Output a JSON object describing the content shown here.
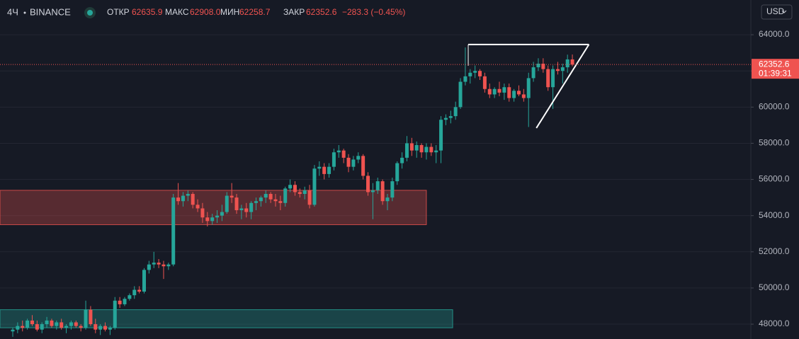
{
  "header": {
    "interval": "4Ч",
    "exchange": "BINANCE",
    "open_label": "ОТКР",
    "open": "62635.9",
    "high_label": "МАКС",
    "high": "62908.0",
    "low_label": "МИН",
    "low": "62258.7",
    "close_label": "ЗАКР",
    "close": "62352.6",
    "change": "−283.3 (−0.45%)",
    "currency": "USD"
  },
  "chart_data": {
    "type": "candlestick",
    "ylim": [
      47180,
      65920
    ],
    "yticks": [
      {
        "value": 48000,
        "label": "48000.0"
      },
      {
        "value": 50000,
        "label": "50000.0"
      },
      {
        "value": 52000,
        "label": "52000.0"
      },
      {
        "value": 54000,
        "label": "54000.0"
      },
      {
        "value": 56000,
        "label": "56000.0"
      },
      {
        "value": 58000,
        "label": "58000.0"
      },
      {
        "value": 60000,
        "label": "60000.0"
      },
      {
        "value": 62000,
        "label": "62000.0"
      },
      {
        "value": 64000,
        "label": "64000.0"
      }
    ],
    "grid": true,
    "up_color": "#26a69a",
    "down_color": "#ef5350",
    "last_price_label": "62352.6",
    "countdown": "01:39:31",
    "zones": [
      {
        "from": 53500,
        "to": 55400,
        "end": 85,
        "color": "#ef5350"
      },
      {
        "from": 47800,
        "to": 48800,
        "end": 90.4,
        "color": "#26a69a"
      }
    ],
    "triangle": {
      "top": 63460,
      "bottom": 58840,
      "start": 93.6,
      "apex": 118.4,
      "base": 107.6
    },
    "candles": [
      [
        47600,
        47800,
        47300,
        47700
      ],
      [
        47700,
        48100,
        47500,
        47900
      ],
      [
        47900,
        48200,
        47600,
        47800
      ],
      [
        47800,
        48300,
        47700,
        48200
      ],
      [
        48200,
        48500,
        47900,
        48000
      ],
      [
        48000,
        48200,
        47600,
        47700
      ],
      [
        47700,
        48100,
        47500,
        48000
      ],
      [
        48000,
        48400,
        47800,
        48200
      ],
      [
        48200,
        48300,
        47800,
        47900
      ],
      [
        47900,
        48200,
        47700,
        48100
      ],
      [
        48100,
        48300,
        47700,
        47800
      ],
      [
        47800,
        48000,
        47500,
        47900
      ],
      [
        47900,
        48200,
        47700,
        48100
      ],
      [
        48100,
        48200,
        47800,
        47900
      ],
      [
        47900,
        48000,
        47600,
        47800
      ],
      [
        47800,
        49300,
        47700,
        48800
      ],
      [
        48800,
        49000,
        47900,
        48000
      ],
      [
        48000,
        48300,
        47500,
        47700
      ],
      [
        47700,
        48000,
        47400,
        47900
      ],
      [
        47900,
        48100,
        47600,
        47700
      ],
      [
        47700,
        47900,
        47400,
        47800
      ],
      [
        47800,
        49500,
        47700,
        49300
      ],
      [
        49300,
        49500,
        48900,
        49100
      ],
      [
        49100,
        49500,
        49000,
        49400
      ],
      [
        49400,
        49700,
        49300,
        49600
      ],
      [
        49600,
        50100,
        49400,
        49900
      ],
      [
        49900,
        50100,
        49700,
        49800
      ],
      [
        49800,
        51100,
        49700,
        51000
      ],
      [
        51000,
        51500,
        50800,
        51300
      ],
      [
        51300,
        52000,
        51100,
        51400
      ],
      [
        51400,
        51600,
        51100,
        51300
      ],
      [
        51300,
        51500,
        50500,
        51200
      ],
      [
        51200,
        51400,
        51000,
        51300
      ],
      [
        51300,
        55200,
        51200,
        55000
      ],
      [
        55000,
        55800,
        54600,
        54800
      ],
      [
        54800,
        55300,
        54500,
        55100
      ],
      [
        55100,
        55400,
        54800,
        55200
      ],
      [
        55200,
        55300,
        54400,
        54600
      ],
      [
        54600,
        54900,
        54200,
        54400
      ],
      [
        54400,
        54700,
        53600,
        53900
      ],
      [
        53900,
        54200,
        53400,
        53700
      ],
      [
        53700,
        54100,
        53500,
        53900
      ],
      [
        53900,
        54300,
        53600,
        54000
      ],
      [
        54000,
        54600,
        53700,
        54200
      ],
      [
        54200,
        55300,
        54100,
        55100
      ],
      [
        55100,
        55800,
        54700,
        55000
      ],
      [
        55000,
        55200,
        54100,
        54300
      ],
      [
        54300,
        54600,
        53800,
        54400
      ],
      [
        54400,
        54700,
        53900,
        54200
      ],
      [
        54200,
        54800,
        53800,
        54700
      ],
      [
        54700,
        55000,
        54300,
        54800
      ],
      [
        54800,
        55100,
        54500,
        55000
      ],
      [
        55000,
        55400,
        54700,
        55200
      ],
      [
        55200,
        55300,
        54700,
        54900
      ],
      [
        54900,
        55200,
        54500,
        54800
      ],
      [
        54800,
        55100,
        54300,
        54700
      ],
      [
        54700,
        55600,
        54500,
        55500
      ],
      [
        55500,
        56000,
        55300,
        55700
      ],
      [
        55700,
        55900,
        55100,
        55300
      ],
      [
        55300,
        55500,
        55000,
        55200
      ],
      [
        55200,
        55600,
        54900,
        55400
      ],
      [
        55400,
        55700,
        54400,
        54600
      ],
      [
        54600,
        56800,
        54500,
        56600
      ],
      [
        56600,
        57000,
        56200,
        56700
      ],
      [
        56700,
        56900,
        56000,
        56300
      ],
      [
        56300,
        56900,
        56100,
        56700
      ],
      [
        56700,
        57700,
        56500,
        57500
      ],
      [
        57500,
        57900,
        57200,
        57600
      ],
      [
        57600,
        57700,
        56900,
        57200
      ],
      [
        57200,
        57400,
        56400,
        56700
      ],
      [
        56700,
        57300,
        56500,
        57100
      ],
      [
        57100,
        57500,
        56900,
        57300
      ],
      [
        57300,
        57400,
        56000,
        56200
      ],
      [
        56200,
        56400,
        55100,
        55300
      ],
      [
        55300,
        55800,
        53800,
        55400
      ],
      [
        55400,
        56100,
        55200,
        55900
      ],
      [
        55900,
        56000,
        54600,
        54800
      ],
      [
        54800,
        55200,
        54300,
        55000
      ],
      [
        55000,
        56100,
        54800,
        55900
      ],
      [
        55900,
        57000,
        55700,
        56900
      ],
      [
        56900,
        57500,
        56600,
        57200
      ],
      [
        57200,
        58400,
        57000,
        58000
      ],
      [
        58000,
        58300,
        57300,
        57600
      ],
      [
        57600,
        58100,
        57200,
        57900
      ],
      [
        57900,
        58000,
        57200,
        57500
      ],
      [
        57500,
        58000,
        57100,
        57800
      ],
      [
        57800,
        58000,
        57300,
        57500
      ],
      [
        57500,
        57900,
        56900,
        57600
      ],
      [
        57600,
        59500,
        56900,
        59300
      ],
      [
        59300,
        59600,
        59000,
        59400
      ],
      [
        59400,
        59800,
        59100,
        59500
      ],
      [
        59500,
        60300,
        59300,
        60000
      ],
      [
        60000,
        61600,
        59900,
        61400
      ],
      [
        61400,
        63300,
        61200,
        61700
      ],
      [
        61700,
        62100,
        61300,
        61900
      ],
      [
        61900,
        62300,
        61600,
        62000
      ],
      [
        62000,
        62100,
        61500,
        61700
      ],
      [
        61700,
        61900,
        60800,
        61000
      ],
      [
        61000,
        61300,
        60500,
        60700
      ],
      [
        60700,
        61100,
        60500,
        61000
      ],
      [
        61000,
        61400,
        60600,
        60800
      ],
      [
        60800,
        61300,
        60400,
        61100
      ],
      [
        61100,
        61300,
        60300,
        60500
      ],
      [
        60500,
        61000,
        60300,
        60900
      ],
      [
        60900,
        61200,
        60600,
        60700
      ],
      [
        60700,
        61000,
        60300,
        60500
      ],
      [
        60500,
        61900,
        58900,
        61600
      ],
      [
        61600,
        62500,
        61400,
        62200
      ],
      [
        62200,
        62700,
        62000,
        62400
      ],
      [
        62400,
        62700,
        61900,
        62100
      ],
      [
        62100,
        62300,
        60900,
        61100
      ],
      [
        61100,
        62300,
        59900,
        62100
      ],
      [
        62100,
        62500,
        61800,
        62000
      ],
      [
        62000,
        62400,
        61300,
        62200
      ],
      [
        62200,
        62900,
        61900,
        62635.9
      ],
      [
        62635.9,
        62908.0,
        62258.7,
        62352.6
      ]
    ]
  }
}
